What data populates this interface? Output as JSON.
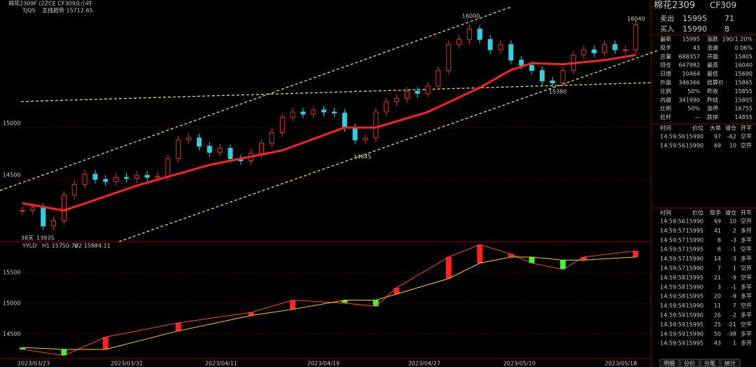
{
  "chart_header": {
    "symbol": "棉花2309F (2ZCE CF309)",
    "period": "1小时",
    "indicator": "TJQS",
    "main_trend": "主线趋势 15712.65"
  },
  "price_chart": {
    "ylim": [
      13900,
      16230
    ],
    "yticks": [
      15000,
      14500
    ],
    "closes": [
      14200,
      14230,
      14050,
      14100,
      14350,
      14450,
      14550,
      14500,
      14480,
      14520,
      14510,
      14540,
      14520,
      14530,
      14700,
      14880,
      14900,
      14820,
      14760,
      14800,
      14700,
      14680,
      14750,
      14850,
      14950,
      15100,
      15150,
      15130,
      15170,
      15150,
      15140,
      15000,
      14880,
      14900,
      15150,
      15250,
      15280,
      15350,
      15330,
      15400,
      15550,
      15800,
      15850,
      15950,
      15850,
      15750,
      15800,
      15650,
      15600,
      15550,
      15450,
      15430,
      15550,
      15700,
      15750,
      15720,
      15800,
      15750,
      15750,
      15990
    ],
    "ma": {
      "x": [
        0,
        4,
        11,
        18,
        25,
        31,
        34,
        39,
        44,
        47,
        49,
        52,
        56,
        59
      ],
      "values": [
        14270,
        14200,
        14440,
        14640,
        14780,
        15000,
        15000,
        15150,
        15385,
        15555,
        15620,
        15610,
        15650,
        15700
      ]
    },
    "annotations": [
      "16000",
      "16040",
      "15380",
      "14845",
      "13935",
      "38天"
    ]
  },
  "indicator_chart": {
    "name": "YYLD",
    "h1": "H1 15750.72",
    "h2": "H2 15884.11",
    "ylim": [
      14100,
      16000
    ],
    "yticks": [
      15500,
      15000,
      14500
    ],
    "x": [
      0,
      4,
      8,
      15,
      22,
      26,
      31,
      34,
      36,
      41,
      44,
      47,
      49,
      52,
      54,
      59
    ],
    "line1": [
      14250,
      14150,
      14450,
      14680,
      14850,
      15050,
      15000,
      14950,
      15250,
      15750,
      15950,
      15800,
      15650,
      15550,
      15750,
      15850
    ],
    "line2": [
      14280,
      14250,
      14250,
      14550,
      14800,
      14900,
      15050,
      15050,
      15150,
      15400,
      15650,
      15750,
      15750,
      15700,
      15700,
      15750
    ]
  },
  "dates": [
    "2023/03/23",
    "2023/03/31",
    "2023/04/11",
    "2023/04/19",
    "2023/04/27",
    "2023/05/10",
    "2023/05/18"
  ],
  "quote": {
    "name": "棉花2309",
    "code": "CF309",
    "ask": [
      "卖出",
      15995,
      71
    ],
    "bid": [
      "买入",
      15990,
      8
    ],
    "rows": [
      [
        "最新",
        15995,
        "涨跌",
        "190/1.20%"
      ],
      [
        "现手",
        43,
        "涨速",
        "0.06%"
      ],
      [
        "总量",
        688357,
        "开盘",
        15805
      ],
      [
        "持仓",
        647982,
        "最高",
        16040
      ],
      [
        "日增",
        10464,
        "最低",
        15690
      ],
      [
        "外盘",
        346366,
        "结算价",
        15865
      ],
      [
        "比例",
        "50%",
        "昨收",
        15855
      ],
      [
        "内盘",
        341990,
        "昨结",
        15805
      ],
      [
        "比例",
        "50%",
        "涨停",
        16755
      ],
      [
        "杠杆",
        "—",
        "跌停",
        14855
      ]
    ]
  },
  "big_orders": {
    "header": [
      "时间",
      "价位",
      "大单",
      "增仓",
      "开平"
    ],
    "rows": [
      [
        "14:59:56",
        15990,
        97,
        -62,
        "空平"
      ],
      [
        "14:59:56",
        15990,
        69,
        10,
        "空开"
      ]
    ]
  },
  "ticks": {
    "header": [
      "时间",
      "价位",
      "现手",
      "增仓",
      "开平"
    ],
    "rows": [
      [
        "14:59:56",
        15990,
        69,
        10,
        "空开"
      ],
      [
        "14:59:57",
        15995,
        41,
        2,
        "多开"
      ],
      [
        "14:59:57",
        15990,
        8,
        -3,
        "多平"
      ],
      [
        "14:59:57",
        15995,
        6,
        -1,
        "空平"
      ],
      [
        "14:59:57",
        15990,
        14,
        -3,
        "多平"
      ],
      [
        "14:59:57",
        15990,
        7,
        1,
        "空开"
      ],
      [
        "14:59:58",
        15995,
        21,
        -9,
        "空平"
      ],
      [
        "14:59:58",
        15990,
        3,
        -1,
        "多平"
      ],
      [
        "14:59:58",
        15995,
        20,
        -9,
        "多平"
      ],
      [
        "14:59:58",
        15990,
        11,
        7,
        "空开"
      ],
      [
        "14:59:59",
        15990,
        26,
        -2,
        "多平"
      ],
      [
        "14:59:59",
        15995,
        25,
        -21,
        "空平"
      ],
      [
        "14:59:59",
        15990,
        50,
        -38,
        "多平"
      ],
      [
        "14:59:59",
        15995,
        43,
        1,
        "多开"
      ]
    ]
  },
  "tabs": [
    "明细",
    "分价",
    "分笔",
    "统计"
  ]
}
